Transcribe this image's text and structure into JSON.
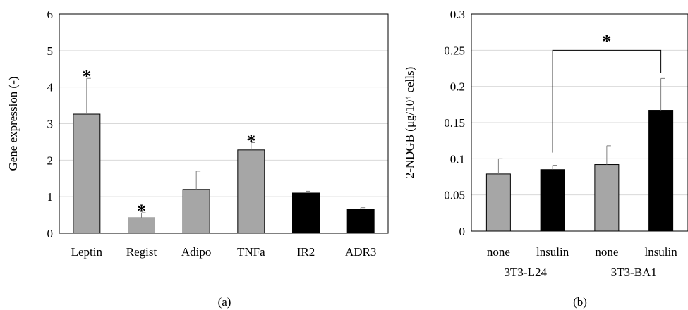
{
  "chart_data": [
    {
      "type": "bar",
      "panel_label": "(a)",
      "title": "",
      "xlabel": "",
      "ylabel": "Gene expression (-)",
      "ylim": [
        0,
        6
      ],
      "yticks": [
        0,
        1,
        2,
        3,
        4,
        5,
        6
      ],
      "grid": "horizontal",
      "categories": [
        "Leptin",
        "Regist",
        "Adipo",
        "TNFa",
        "IR2",
        "ADR3"
      ],
      "values": [
        3.26,
        0.42,
        1.2,
        2.28,
        1.1,
        0.66
      ],
      "errors": [
        0.98,
        0.14,
        0.5,
        0.2,
        0.05,
        0.04
      ],
      "bar_colors": [
        "#a6a6a6",
        "#a6a6a6",
        "#a6a6a6",
        "#a6a6a6",
        "#000000",
        "#000000"
      ],
      "significance": [
        "*",
        "*",
        "",
        "*",
        "",
        ""
      ],
      "significance_mark": "*"
    },
    {
      "type": "bar",
      "panel_label": "(b)",
      "title": "",
      "xlabel": "",
      "ylabel": "2-NDGB (μg/10⁴ cells)",
      "ylim": [
        0,
        0.3
      ],
      "yticks": [
        "0",
        "0.05",
        "0.1",
        "0.15",
        "0.2",
        "0.25",
        "0.3"
      ],
      "grid": "horizontal",
      "categories": [
        "none",
        "lnsulin",
        "none",
        "lnsulin"
      ],
      "groups": [
        "3T3-L24",
        "3T3-BA1"
      ],
      "values": [
        0.079,
        0.085,
        0.092,
        0.167
      ],
      "errors": [
        0.021,
        0.006,
        0.026,
        0.044
      ],
      "bar_colors": [
        "#a6a6a6",
        "#000000",
        "#a6a6a6",
        "#000000"
      ],
      "bracket": {
        "from": 1,
        "to": 3,
        "label": "*"
      }
    }
  ]
}
